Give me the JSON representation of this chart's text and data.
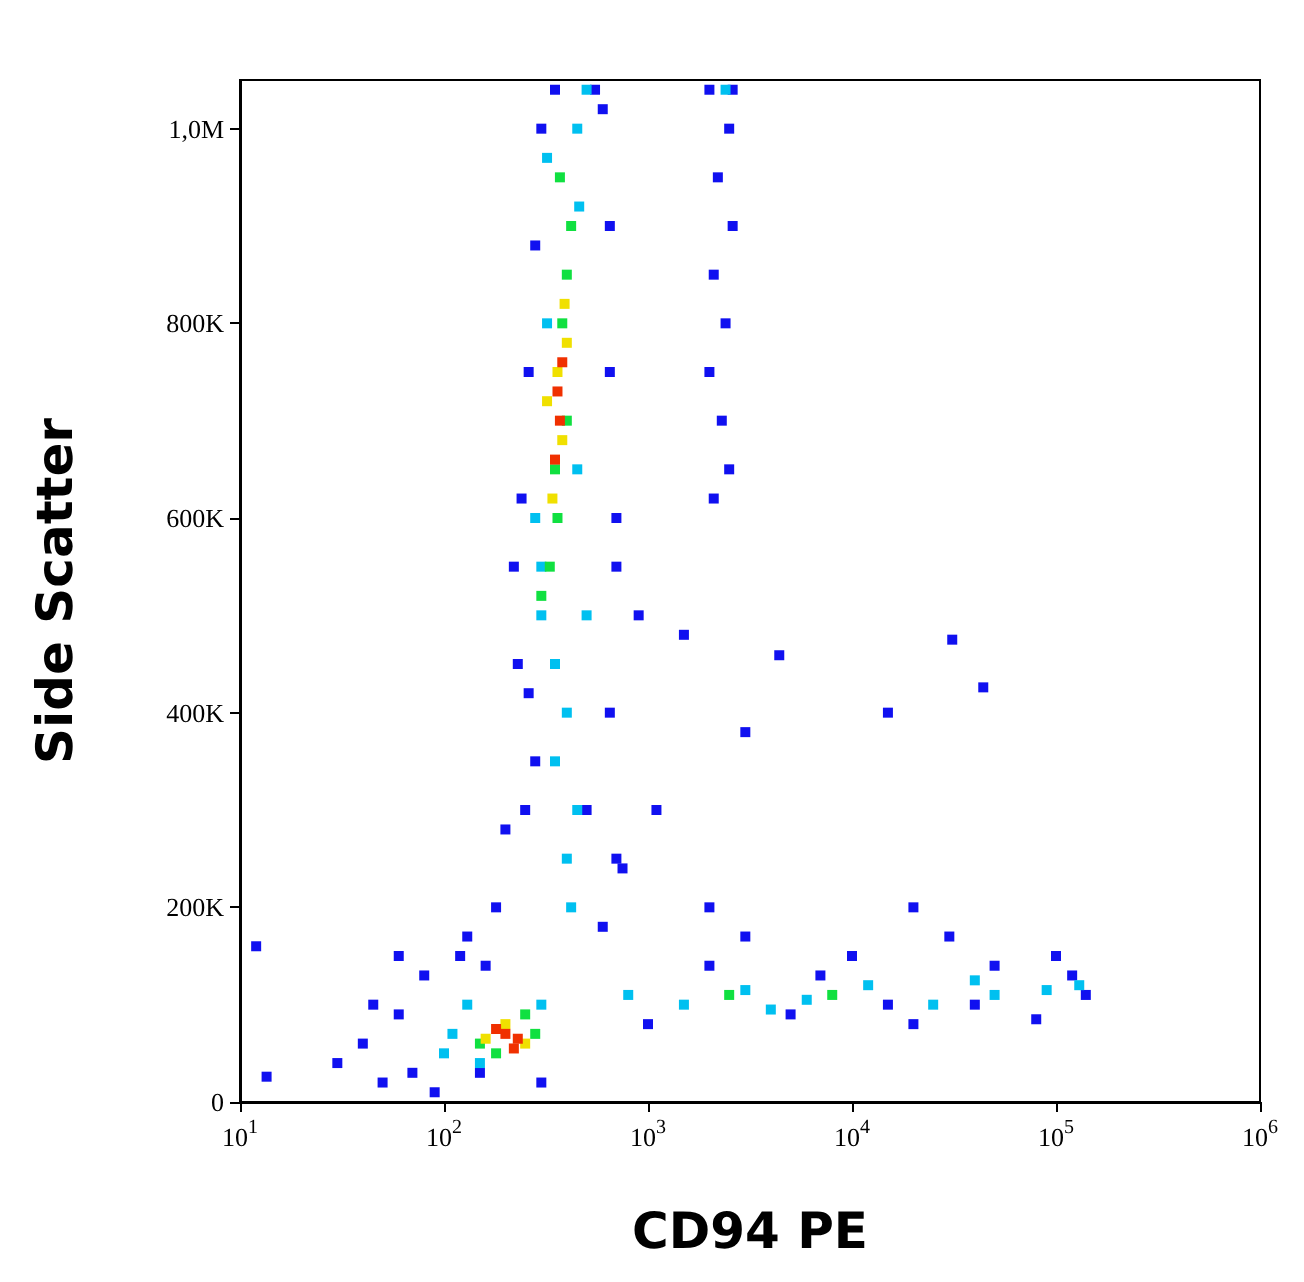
{
  "chart_data": {
    "type": "scatter",
    "xlabel": "CD94 PE",
    "ylabel": "Side Scatter",
    "log": "x",
    "marker": "square",
    "grid": false,
    "xlim": [
      10,
      1000000
    ],
    "xticks": [
      {
        "value": 10,
        "label": "10$^{1}$"
      },
      {
        "value": 100,
        "label": "10$^{2}$"
      },
      {
        "value": 1000,
        "label": "10$^{3}$"
      },
      {
        "value": 10000,
        "label": "10$^{4}$"
      },
      {
        "value": 100000,
        "label": "10$^{5}$"
      },
      {
        "value": 1000000,
        "label": "10$^{6}$"
      }
    ],
    "ylim": [
      0,
      1050000
    ],
    "yticks": [
      0,
      {
        "value": 200000,
        "label": "200K"
      },
      {
        "value": 400000,
        "label": "400K"
      },
      {
        "value": 600000,
        "label": "600K"
      },
      {
        "value": 800000,
        "label": "800K"
      },
      {
        "value": 1000000,
        "label": "1,0M"
      }
    ],
    "series": [
      {
        "color": "#1010f0",
        "x": [
          30,
          40,
          50,
          60,
          70,
          80,
          90,
          120,
          150,
          300,
          60,
          45,
          12,
          13.5,
          250,
          230,
          240,
          260,
          280,
          300,
          550,
          650,
          700,
          650,
          700,
          600,
          180,
          200,
          280,
          650,
          600,
          350,
          220,
          260,
          750,
          500,
          160,
          130,
          1000,
          2000,
          5000,
          10000,
          20000,
          50000,
          80000,
          120000,
          140000,
          3000,
          30000,
          100000,
          7000,
          15000,
          40000,
          2000,
          2500,
          2200,
          2600,
          2100,
          2400,
          2000,
          2300,
          2500,
          2100,
          2600,
          1500,
          3000,
          15000,
          20000,
          2000,
          44000,
          31000,
          4400,
          700,
          1100,
          900
        ],
        "values": [
          40000,
          60000,
          20000,
          90000,
          30000,
          130000,
          10000,
          150000,
          30000,
          20000,
          150000,
          100000,
          160000,
          26000,
          300000,
          450000,
          620000,
          750000,
          880000,
          1000000,
          1040000,
          900000,
          600000,
          400000,
          250000,
          180000,
          200000,
          280000,
          350000,
          750000,
          1020000,
          1040000,
          550000,
          420000,
          240000,
          300000,
          140000,
          170000,
          80000,
          140000,
          90000,
          150000,
          80000,
          140000,
          85000,
          130000,
          110000,
          170000,
          170000,
          150000,
          130000,
          100000,
          100000,
          1040000,
          1000000,
          950000,
          900000,
          850000,
          800000,
          750000,
          700000,
          650000,
          620000,
          1040000,
          480000,
          380000,
          400000,
          200000,
          200000,
          426000,
          475000,
          459000,
          550000,
          300000,
          500000
        ]
      },
      {
        "color": "#00c0f0",
        "x": [
          300,
          350,
          400,
          350,
          450,
          400,
          420,
          300,
          450,
          320,
          460,
          320,
          450,
          500,
          280,
          500,
          100,
          130,
          150,
          300,
          110,
          800,
          1500,
          3000,
          6000,
          12000,
          25000,
          50000,
          90000,
          130000,
          4000,
          40000,
          2400
        ],
        "values": [
          500000,
          450000,
          400000,
          350000,
          300000,
          250000,
          200000,
          550000,
          650000,
          800000,
          920000,
          970000,
          1000000,
          1040000,
          600000,
          500000,
          50000,
          100000,
          40000,
          100000,
          70000,
          110000,
          100000,
          115000,
          105000,
          120000,
          100000,
          110000,
          115000,
          120000,
          95000,
          125000,
          1040000
        ]
      },
      {
        "color": "#10e040",
        "x": [
          330,
          360,
          400,
          380,
          400,
          420,
          350,
          370,
          300,
          150,
          250,
          180,
          280,
          2500,
          8000
        ],
        "values": [
          550000,
          600000,
          700000,
          800000,
          850000,
          900000,
          650000,
          950000,
          520000,
          60000,
          90000,
          50000,
          70000,
          110000,
          110000
        ]
      },
      {
        "color": "#f0e000",
        "x": [
          340,
          380,
          360,
          400,
          320,
          390,
          200,
          160,
          250
        ],
        "values": [
          620000,
          680000,
          750000,
          780000,
          720000,
          820000,
          80000,
          65000,
          60000
        ]
      },
      {
        "color": "#f03000",
        "x": [
          370,
          360,
          380,
          350,
          200,
          230,
          180,
          220
        ],
        "values": [
          700000,
          730000,
          760000,
          660000,
          70000,
          65000,
          75000,
          55000
        ]
      }
    ]
  }
}
